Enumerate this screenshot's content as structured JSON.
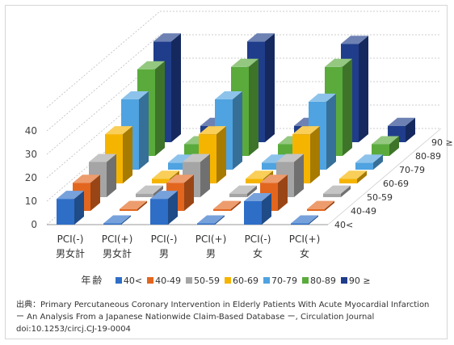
{
  "chart_data": {
    "type": "bar",
    "ylim": [
      0,
      40
    ],
    "y_ticks": [
      0,
      10,
      20,
      30,
      40
    ],
    "grid": true,
    "legend_placement": "bottom",
    "categories": [
      [
        "PCI(-)",
        "男女計"
      ],
      [
        "PCI(+)",
        "男女計"
      ],
      [
        "PCI(-)",
        "男"
      ],
      [
        "PCI(+)",
        "男"
      ],
      [
        "PCI(-)",
        "女"
      ],
      [
        "PCI(+)",
        "女"
      ]
    ],
    "depth_labels": [
      "40<",
      "40-49",
      "50-59",
      "60-69",
      "70-79",
      "80-89",
      "90 ≥"
    ],
    "series": [
      {
        "name": "40<",
        "color": "#2e6ec7",
        "values": [
          11,
          0.5,
          11,
          0.5,
          10,
          0.5
        ]
      },
      {
        "name": "40-49",
        "color": "#e3661f",
        "values": [
          12,
          0.8,
          12,
          0.8,
          12,
          0.8
        ]
      },
      {
        "name": "50-59",
        "color": "#a5a5a5",
        "values": [
          15,
          1.5,
          15,
          1.5,
          15,
          1.5
        ]
      },
      {
        "name": "60-69",
        "color": "#f5b400",
        "values": [
          21,
          2,
          21,
          2,
          21,
          2
        ]
      },
      {
        "name": "70-79",
        "color": "#4fa3e0",
        "values": [
          30,
          3,
          30,
          3,
          29,
          3
        ]
      },
      {
        "name": "80-89",
        "color": "#5aab3c",
        "values": [
          37,
          5,
          38,
          5,
          38,
          5
        ]
      },
      {
        "name": "90 ≥",
        "color": "#1f3d8a",
        "values": [
          43,
          7,
          43,
          7,
          42,
          7
        ]
      }
    ]
  },
  "legend": {
    "title": "年齢"
  },
  "source": {
    "line1": "出典：Primary Percutaneous Coronary Intervention in Elderly Patients With Acute Myocardial Infarction",
    "line2": "ー An Analysis From a Japanese Nationwide Claim-Based Database ー, Circulation Journal",
    "line3": "doi:10.1253/circj.CJ-19-0004"
  }
}
